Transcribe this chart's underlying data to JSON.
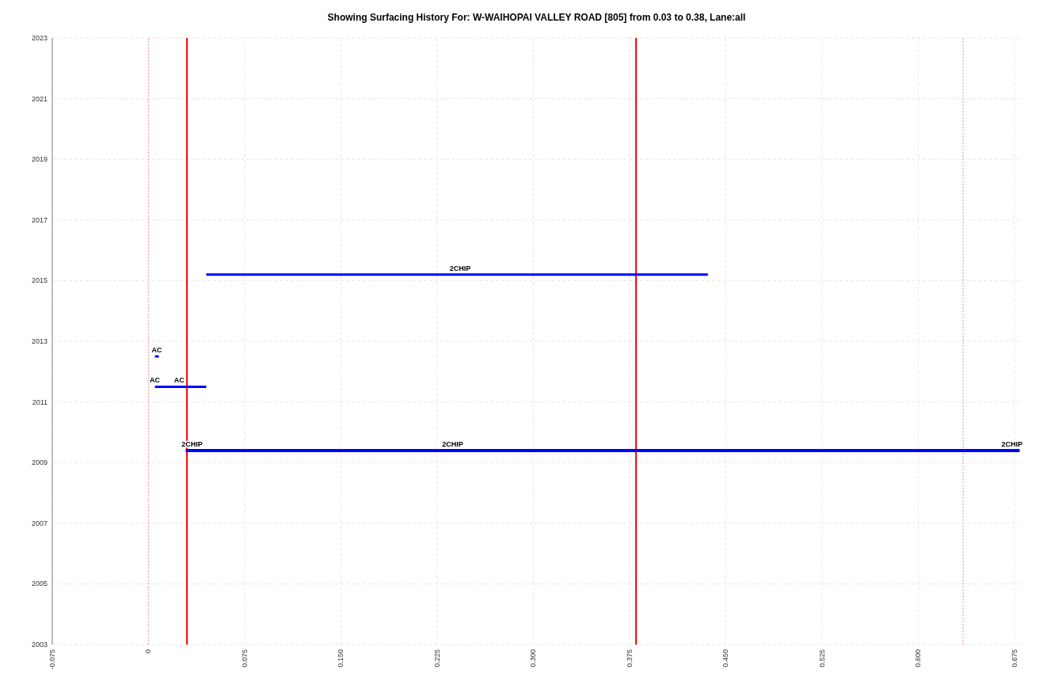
{
  "chart_data": {
    "type": "line",
    "title": "Showing Surfacing History For: W-WAIHOPAI VALLEY ROAD [805]  from 0.03 to 0.38, Lane:all",
    "series": [
      {
        "color": "#0000ff",
        "x": [
          0.045,
          0.436
        ],
        "values": [
          2015.2,
          2015.2
        ]
      },
      {
        "color": "#0000ff",
        "x": [
          0.005,
          0.008
        ],
        "values": [
          2012.5,
          2012.5
        ]
      },
      {
        "color": "#0000ff",
        "x": [
          0.005,
          0.045
        ],
        "values": [
          2011.5,
          2011.5
        ]
      },
      {
        "color": "#0000ff",
        "x": [
          0.029,
          0.679
        ],
        "values": [
          2009.4,
          2009.4
        ]
      }
    ],
    "annotations": [
      {
        "text": "2CHIP",
        "x": 0.243,
        "y": 2015.2
      },
      {
        "text": "AC",
        "x": 0.0065,
        "y": 2012.5
      },
      {
        "text": "AC",
        "x": 0.005,
        "y": 2011.5
      },
      {
        "text": "AC",
        "x": 0.024,
        "y": 2011.5
      },
      {
        "text": "2CHIP",
        "x": 0.034,
        "y": 2009.4
      },
      {
        "text": "2CHIP",
        "x": 0.237,
        "y": 2009.4
      },
      {
        "text": "2CHIP",
        "x": 0.673,
        "y": 2009.4
      }
    ],
    "ref_lines": [
      {
        "axis": "x",
        "value": 0.03,
        "color": "#ff0000",
        "line_style": "solid"
      },
      {
        "axis": "x",
        "value": 0.38,
        "color": "#ff0000",
        "line_style": "solid"
      },
      {
        "axis": "x",
        "value": 0,
        "color": "#ffb0b0",
        "line_style": "dotted"
      },
      {
        "axis": "x",
        "value": 0.635,
        "color": "#ffb0b0",
        "line_style": "dotted"
      }
    ],
    "xlim": [
      -0.075,
      0.68
    ],
    "xticks": [
      -0.075,
      0,
      {
        "value": 0.075,
        "label": "0.075"
      },
      {
        "value": 0.15,
        "label": "0.150"
      },
      {
        "value": 0.225,
        "label": "0.225"
      },
      {
        "value": 0.3,
        "label": "0.300"
      },
      {
        "value": 0.375,
        "label": "0.375"
      },
      {
        "value": 0.45,
        "label": "0.450"
      },
      {
        "value": 0.525,
        "label": "0.525"
      },
      {
        "value": 0.6,
        "label": "0.600"
      },
      {
        "value": 0.675,
        "label": "0.675"
      }
    ],
    "ylim": [
      2003,
      2023
    ],
    "yticks": [
      2003,
      2005,
      2007,
      2009,
      2011,
      2013,
      2015,
      2017,
      2019,
      2021,
      2023
    ],
    "grid": true,
    "marker": "none",
    "line_style": "solid"
  }
}
